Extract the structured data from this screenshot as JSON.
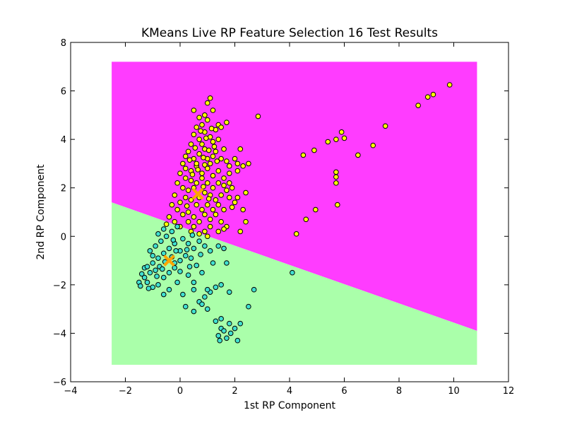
{
  "chart_data": {
    "type": "scatter",
    "title": "KMeans Live RP Feature Selection 16 Test Results",
    "xlabel": "1st RP Component",
    "ylabel": "2nd RP Component",
    "xlim": [
      -4,
      12
    ],
    "ylim": [
      -6,
      8
    ],
    "xticks": [
      -4,
      -2,
      0,
      2,
      4,
      6,
      8,
      10,
      12
    ],
    "yticks": [
      -6,
      -4,
      -2,
      0,
      2,
      4,
      6,
      8
    ],
    "grid": false,
    "legend": "none",
    "regions": [
      {
        "cluster": 0,
        "color": "#ff3cff",
        "polygon": [
          [
            -2.5,
            7.2
          ],
          [
            10.85,
            7.2
          ],
          [
            10.85,
            -3.9
          ],
          [
            -2.5,
            1.4
          ]
        ]
      },
      {
        "cluster": 1,
        "color": "#aaffaa",
        "polygon": [
          [
            -2.5,
            1.4
          ],
          [
            10.85,
            -3.9
          ],
          [
            10.85,
            -5.3
          ],
          [
            -2.5,
            -5.3
          ]
        ]
      }
    ],
    "centroids": {
      "color": "#ffa500",
      "marker": "x",
      "points": [
        [
          0.65,
          1.75
        ],
        [
          -0.4,
          -1.0
        ]
      ]
    },
    "series": [
      {
        "cluster": 0,
        "color": "#ffff00",
        "points": [
          [
            0.5,
            5.2
          ],
          [
            0.7,
            4.9
          ],
          [
            0.8,
            4.6
          ],
          [
            0.9,
            5.0
          ],
          [
            1.0,
            5.5
          ],
          [
            1.1,
            5.7
          ],
          [
            1.2,
            5.2
          ],
          [
            1.0,
            4.8
          ],
          [
            0.6,
            4.5
          ],
          [
            0.5,
            4.2
          ],
          [
            0.7,
            4.0
          ],
          [
            0.8,
            3.8
          ],
          [
            0.9,
            4.3
          ],
          [
            1.1,
            4.1
          ],
          [
            1.2,
            3.9
          ],
          [
            1.3,
            4.4
          ],
          [
            1.4,
            4.6
          ],
          [
            1.5,
            4.5
          ],
          [
            1.7,
            4.7
          ],
          [
            1.4,
            4.0
          ],
          [
            1.6,
            3.6
          ],
          [
            1.3,
            3.5
          ],
          [
            0.4,
            3.8
          ],
          [
            0.3,
            3.5
          ],
          [
            0.2,
            3.3
          ],
          [
            0.5,
            3.2
          ],
          [
            0.7,
            3.4
          ],
          [
            0.9,
            3.6
          ],
          [
            1.0,
            3.2
          ],
          [
            1.1,
            3.0
          ],
          [
            1.2,
            3.3
          ],
          [
            1.5,
            3.2
          ],
          [
            1.7,
            3.1
          ],
          [
            1.8,
            2.9
          ],
          [
            2.0,
            3.2
          ],
          [
            2.2,
            3.6
          ],
          [
            2.5,
            3.0
          ],
          [
            2.3,
            2.9
          ],
          [
            2.1,
            2.7
          ],
          [
            1.8,
            2.6
          ],
          [
            0.1,
            3.0
          ],
          [
            0.2,
            2.8
          ],
          [
            0.4,
            2.7
          ],
          [
            0.6,
            2.9
          ],
          [
            0.8,
            2.6
          ],
          [
            1.0,
            2.8
          ],
          [
            1.2,
            2.5
          ],
          [
            1.4,
            2.7
          ],
          [
            1.6,
            2.4
          ],
          [
            1.8,
            2.2
          ],
          [
            1.9,
            2.0
          ],
          [
            1.6,
            2.1
          ],
          [
            1.4,
            2.2
          ],
          [
            1.2,
            2.0
          ],
          [
            1.0,
            2.2
          ],
          [
            0.8,
            2.4
          ],
          [
            0.6,
            2.2
          ],
          [
            0.4,
            2.3
          ],
          [
            0.2,
            2.4
          ],
          [
            0.0,
            2.6
          ],
          [
            -0.1,
            2.2
          ],
          [
            0.1,
            2.0
          ],
          [
            0.3,
            1.9
          ],
          [
            0.5,
            2.0
          ],
          [
            0.7,
            1.6
          ],
          [
            0.9,
            1.8
          ],
          [
            1.1,
            1.7
          ],
          [
            1.3,
            1.5
          ],
          [
            1.5,
            1.7
          ],
          [
            1.7,
            1.9
          ],
          [
            1.8,
            1.6
          ],
          [
            2.1,
            1.6
          ],
          [
            2.4,
            1.8
          ],
          [
            2.3,
            1.1
          ],
          [
            2.4,
            0.6
          ],
          [
            1.9,
            1.2
          ],
          [
            1.6,
            1.1
          ],
          [
            1.4,
            1.3
          ],
          [
            1.2,
            1.1
          ],
          [
            1.0,
            1.3
          ],
          [
            0.8,
            1.1
          ],
          [
            0.6,
            1.3
          ],
          [
            0.4,
            1.5
          ],
          [
            0.2,
            1.6
          ],
          [
            0.0,
            1.4
          ],
          [
            -0.2,
            1.7
          ],
          [
            -0.3,
            1.3
          ],
          [
            -0.1,
            1.1
          ],
          [
            0.1,
            0.9
          ],
          [
            0.3,
            1.0
          ],
          [
            0.5,
            0.8
          ],
          [
            0.7,
            0.6
          ],
          [
            0.9,
            0.9
          ],
          [
            1.1,
            0.7
          ],
          [
            1.3,
            0.9
          ],
          [
            1.5,
            0.6
          ],
          [
            1.7,
            0.4
          ],
          [
            1.4,
            0.2
          ],
          [
            1.1,
            0.4
          ],
          [
            0.9,
            0.2
          ],
          [
            0.7,
            0.1
          ],
          [
            0.5,
            0.4
          ],
          [
            0.3,
            0.6
          ],
          [
            -0.4,
            0.8
          ],
          [
            -0.2,
            0.6
          ],
          [
            0.0,
            0.4
          ],
          [
            -0.5,
            0.5
          ],
          [
            1.6,
            0.3
          ],
          [
            2.0,
            1.4
          ],
          [
            2.2,
            0.2
          ],
          [
            1.0,
            0.0
          ],
          [
            0.4,
            0.2
          ],
          [
            0.6,
            3.0
          ],
          [
            0.85,
            3.25
          ],
          [
            1.05,
            3.55
          ],
          [
            1.25,
            3.7
          ],
          [
            0.95,
            4.05
          ],
          [
            1.15,
            4.45
          ],
          [
            0.75,
            4.35
          ],
          [
            0.55,
            3.65
          ],
          [
            0.35,
            3.15
          ],
          [
            0.65,
            2.75
          ],
          [
            0.9,
            2.95
          ],
          [
            1.35,
            3.1
          ],
          [
            0.45,
            2.55
          ],
          [
            0.85,
            2.05
          ],
          [
            1.05,
            1.55
          ],
          [
            0.25,
            1.25
          ],
          [
            2.85,
            4.95
          ],
          [
            2.1,
            3.0
          ],
          [
            4.5,
            3.35
          ],
          [
            4.9,
            3.55
          ],
          [
            5.4,
            3.9
          ],
          [
            5.7,
            4.0
          ],
          [
            5.9,
            4.3
          ],
          [
            6.0,
            4.05
          ],
          [
            6.5,
            3.35
          ],
          [
            7.05,
            3.75
          ],
          [
            7.5,
            4.55
          ],
          [
            8.7,
            5.4
          ],
          [
            9.05,
            5.75
          ],
          [
            9.25,
            5.85
          ],
          [
            9.85,
            6.25
          ],
          [
            5.7,
            2.65
          ],
          [
            5.7,
            2.45
          ],
          [
            5.7,
            2.2
          ],
          [
            5.75,
            1.3
          ],
          [
            4.95,
            1.1
          ],
          [
            4.6,
            0.7
          ],
          [
            4.25,
            0.1
          ]
        ]
      },
      {
        "cluster": 1,
        "color": "#40e0d0",
        "points": [
          [
            -1.5,
            -1.9
          ],
          [
            -1.3,
            -1.7
          ],
          [
            -1.1,
            -1.5
          ],
          [
            -0.9,
            -1.4
          ],
          [
            -1.2,
            -1.9
          ],
          [
            -1.0,
            -2.1
          ],
          [
            -0.8,
            -2.0
          ],
          [
            -0.6,
            -1.7
          ],
          [
            -0.4,
            -1.5
          ],
          [
            -0.2,
            -1.3
          ],
          [
            -0.4,
            -2.2
          ],
          [
            -0.6,
            -2.4
          ],
          [
            -1.3,
            -1.3
          ],
          [
            -1.0,
            -1.1
          ],
          [
            -0.8,
            -0.9
          ],
          [
            -0.6,
            -0.7
          ],
          [
            -0.4,
            -0.5
          ],
          [
            -0.2,
            -0.3
          ],
          [
            0.0,
            -0.6
          ],
          [
            0.2,
            -0.8
          ],
          [
            0.0,
            -1.0
          ],
          [
            -0.2,
            -1.1
          ],
          [
            -1.1,
            -0.6
          ],
          [
            -0.9,
            -0.4
          ],
          [
            -0.7,
            -0.2
          ],
          [
            -0.5,
            0.0
          ],
          [
            -0.3,
            0.2
          ],
          [
            -0.1,
            0.4
          ],
          [
            -0.6,
            0.3
          ],
          [
            -0.8,
            0.1
          ],
          [
            -1.0,
            -0.8
          ],
          [
            0.1,
            -0.1
          ],
          [
            0.3,
            -0.3
          ],
          [
            0.5,
            -0.5
          ],
          [
            0.7,
            -0.2
          ],
          [
            0.9,
            -0.4
          ],
          [
            1.1,
            -0.6
          ],
          [
            0.4,
            -0.9
          ],
          [
            0.6,
            -1.2
          ],
          [
            0.8,
            -1.5
          ],
          [
            0.3,
            -1.6
          ],
          [
            0.5,
            -1.9
          ],
          [
            -0.1,
            -1.9
          ],
          [
            0.1,
            -2.4
          ],
          [
            0.5,
            -2.2
          ],
          [
            0.9,
            -2.5
          ],
          [
            0.7,
            -2.7
          ],
          [
            1.0,
            -3.0
          ],
          [
            0.8,
            -2.8
          ],
          [
            0.5,
            -3.1
          ],
          [
            0.2,
            -2.9
          ],
          [
            1.3,
            -3.5
          ],
          [
            1.5,
            -3.8
          ],
          [
            1.4,
            -4.1
          ],
          [
            1.6,
            -3.9
          ],
          [
            1.8,
            -3.6
          ],
          [
            2.0,
            -3.8
          ],
          [
            2.2,
            -3.6
          ],
          [
            1.7,
            -4.2
          ],
          [
            2.1,
            -4.3
          ],
          [
            1.5,
            -3.4
          ],
          [
            1.3,
            -2.1
          ],
          [
            1.1,
            -2.3
          ],
          [
            1.0,
            -2.2
          ],
          [
            1.5,
            -2.0
          ],
          [
            1.7,
            -1.1
          ],
          [
            1.2,
            -1.1
          ],
          [
            1.8,
            -2.3
          ],
          [
            2.7,
            -2.2
          ],
          [
            2.5,
            -2.9
          ],
          [
            1.4,
            -0.4
          ],
          [
            1.6,
            -0.5
          ],
          [
            4.1,
            -1.5
          ],
          [
            -1.4,
            -1.55
          ],
          [
            -1.45,
            -2.05
          ],
          [
            -1.15,
            -2.15
          ],
          [
            -0.75,
            -1.25
          ],
          [
            -0.55,
            -1.05
          ],
          [
            -0.3,
            -0.85
          ],
          [
            -0.15,
            -0.6
          ],
          [
            -0.85,
            -1.65
          ],
          [
            -0.65,
            -1.35
          ],
          [
            0.25,
            -0.55
          ],
          [
            0.45,
            0.05
          ],
          [
            -0.25,
            -0.15
          ],
          [
            0.75,
            -0.75
          ],
          [
            0.35,
            -1.25
          ],
          [
            0.0,
            -1.45
          ],
          [
            -1.2,
            -1.25
          ],
          [
            1.45,
            -4.3
          ],
          [
            1.85,
            -4.0
          ]
        ]
      }
    ]
  }
}
